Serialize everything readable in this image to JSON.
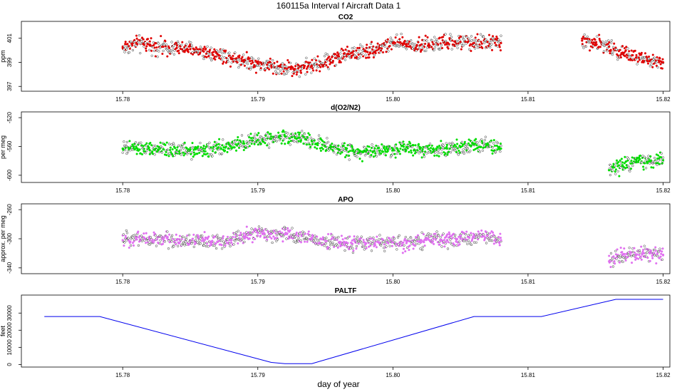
{
  "figure": {
    "title": "160115a   Interval f Aircraft Data 1",
    "xlabel": "day of year"
  },
  "chart_data": [
    {
      "type": "scatter",
      "title": "CO2",
      "ylabel": "ppm",
      "xlim": [
        15.7725,
        15.8205
      ],
      "ylim": [
        396.6,
        402.4
      ],
      "xticks": [
        15.78,
        15.79,
        15.8,
        15.81,
        15.82
      ],
      "xtick_labels": [
        "15.78",
        "15.79",
        "15.80",
        "15.81",
        "15.82"
      ],
      "yticks": [
        397,
        399,
        401
      ],
      "ytick_labels": [
        "397",
        "399",
        "401"
      ],
      "grid": false,
      "series": [
        {
          "color": "#e00000",
          "points": [
            [
              15.78,
              400.2
            ],
            [
              15.781,
              400.6
            ],
            [
              15.782,
              400.4
            ],
            [
              15.783,
              400.3
            ],
            [
              15.784,
              400.2
            ],
            [
              15.785,
              400.1
            ],
            [
              15.786,
              399.9
            ],
            [
              15.787,
              399.7
            ],
            [
              15.788,
              399.4
            ],
            [
              15.789,
              399.2
            ],
            [
              15.79,
              398.9
            ],
            [
              15.791,
              398.7
            ],
            [
              15.792,
              398.5
            ],
            [
              15.793,
              398.5
            ],
            [
              15.794,
              398.7
            ],
            [
              15.795,
              399.0
            ],
            [
              15.796,
              399.5
            ],
            [
              15.797,
              399.8
            ],
            [
              15.798,
              399.9
            ],
            [
              15.799,
              400.2
            ],
            [
              15.8,
              400.6
            ],
            [
              15.801,
              400.5
            ],
            [
              15.802,
              400.4
            ],
            [
              15.803,
              400.5
            ],
            [
              15.804,
              400.6
            ],
            [
              15.805,
              400.7
            ],
            [
              15.806,
              400.6
            ],
            [
              15.807,
              400.7
            ],
            [
              15.808,
              400.6
            ],
            [
              15.814,
              400.8
            ],
            [
              15.815,
              400.6
            ],
            [
              15.816,
              400.3
            ],
            [
              15.817,
              399.8
            ],
            [
              15.818,
              399.4
            ],
            [
              15.819,
              399.1
            ],
            [
              15.82,
              399.0
            ]
          ]
        }
      ]
    },
    {
      "type": "scatter",
      "title": "d(O2/N2)",
      "ylabel": "per meg",
      "xlim": [
        15.7725,
        15.8205
      ],
      "ylim": [
        -610,
        -512
      ],
      "xticks": [
        15.78,
        15.79,
        15.8,
        15.81,
        15.82
      ],
      "xtick_labels": [
        "15.78",
        "15.79",
        "15.80",
        "15.81",
        "15.82"
      ],
      "yticks": [
        -600,
        -560,
        -520
      ],
      "ytick_labels": [
        "-600",
        "-560",
        "-520"
      ],
      "grid": false,
      "series": [
        {
          "color": "#00dd00",
          "points": [
            [
              15.78,
              -563
            ],
            [
              15.781,
              -562
            ],
            [
              15.782,
              -565
            ],
            [
              15.783,
              -564
            ],
            [
              15.784,
              -565
            ],
            [
              15.785,
              -564
            ],
            [
              15.786,
              -566
            ],
            [
              15.787,
              -563
            ],
            [
              15.788,
              -560
            ],
            [
              15.789,
              -556
            ],
            [
              15.79,
              -551
            ],
            [
              15.791,
              -549
            ],
            [
              15.792,
              -546
            ],
            [
              15.793,
              -548
            ],
            [
              15.794,
              -553
            ],
            [
              15.795,
              -560
            ],
            [
              15.796,
              -564
            ],
            [
              15.797,
              -566
            ],
            [
              15.798,
              -567
            ],
            [
              15.799,
              -566
            ],
            [
              15.8,
              -564
            ],
            [
              15.801,
              -561
            ],
            [
              15.802,
              -563
            ],
            [
              15.803,
              -564
            ],
            [
              15.804,
              -563
            ],
            [
              15.805,
              -561
            ],
            [
              15.806,
              -557
            ],
            [
              15.807,
              -556
            ],
            [
              15.808,
              -563
            ],
            [
              15.816,
              -593
            ],
            [
              15.817,
              -586
            ],
            [
              15.818,
              -582
            ],
            [
              15.819,
              -580
            ],
            [
              15.82,
              -579
            ]
          ]
        }
      ]
    },
    {
      "type": "scatter",
      "title": "APO",
      "ylabel": "approx. per meg",
      "xlim": [
        15.7725,
        15.8205
      ],
      "ylim": [
        -348,
        -252
      ],
      "xticks": [
        15.78,
        15.79,
        15.8,
        15.81,
        15.82
      ],
      "xtick_labels": [
        "15.78",
        "15.79",
        "15.80",
        "15.81",
        "15.82"
      ],
      "yticks": [
        -340,
        -300,
        -260
      ],
      "ytick_labels": [
        "-340",
        "-300",
        "-260"
      ],
      "grid": false,
      "series": [
        {
          "color": "#e070f0",
          "points": [
            [
              15.78,
              -302
            ],
            [
              15.781,
              -298
            ],
            [
              15.782,
              -301
            ],
            [
              15.783,
              -301
            ],
            [
              15.784,
              -302
            ],
            [
              15.785,
              -303
            ],
            [
              15.786,
              -303
            ],
            [
              15.787,
              -304
            ],
            [
              15.788,
              -302
            ],
            [
              15.789,
              -297
            ],
            [
              15.79,
              -292
            ],
            [
              15.791,
              -293
            ],
            [
              15.792,
              -294
            ],
            [
              15.793,
              -296
            ],
            [
              15.794,
              -301
            ],
            [
              15.795,
              -303
            ],
            [
              15.796,
              -305
            ],
            [
              15.797,
              -307
            ],
            [
              15.798,
              -306
            ],
            [
              15.799,
              -305
            ],
            [
              15.8,
              -305
            ],
            [
              15.801,
              -306
            ],
            [
              15.802,
              -303
            ],
            [
              15.803,
              -300
            ],
            [
              15.804,
              -302
            ],
            [
              15.805,
              -300
            ],
            [
              15.806,
              -298
            ],
            [
              15.807,
              -296
            ],
            [
              15.808,
              -302
            ],
            [
              15.816,
              -331
            ],
            [
              15.817,
              -322
            ],
            [
              15.818,
              -322
            ],
            [
              15.819,
              -320
            ],
            [
              15.82,
              -322
            ]
          ]
        }
      ]
    },
    {
      "type": "line",
      "title": "PALTF",
      "ylabel": "feet",
      "xlim": [
        15.7725,
        15.8205
      ],
      "ylim": [
        -1500,
        40500
      ],
      "xticks": [
        15.78,
        15.79,
        15.8,
        15.81,
        15.82
      ],
      "xtick_labels": [
        "15.78",
        "15.79",
        "15.80",
        "15.81",
        "15.82"
      ],
      "yticks": [
        0,
        10000,
        20000,
        30000
      ],
      "ytick_labels": [
        "0",
        "10000",
        "20000",
        "30000"
      ],
      "grid": false,
      "series": [
        {
          "color": "#0000ee",
          "x": [
            15.7742,
            15.7783,
            15.791,
            15.792,
            15.794,
            15.806,
            15.807,
            15.811,
            15.8165,
            15.82
          ],
          "y": [
            28000,
            28000,
            1200,
            500,
            500,
            28000,
            28000,
            28000,
            38000,
            38000
          ]
        }
      ]
    }
  ]
}
